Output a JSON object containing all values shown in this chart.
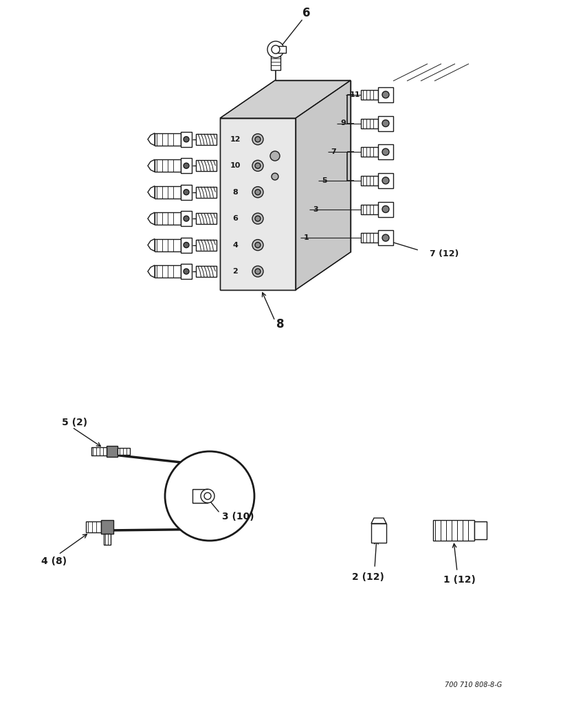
{
  "bg_color": "#ffffff",
  "line_color": "#1a1a1a",
  "part_numbers": {
    "label6": "6",
    "label7": "7 (12)",
    "label8": "8",
    "label5": "5 (2)",
    "label4": "4 (8)",
    "label3": "3 (10)",
    "label2": "2 (12)",
    "label1": "1 (12)"
  },
  "block_numbers_left": [
    "12",
    "10",
    "8",
    "6",
    "4",
    "2"
  ],
  "block_numbers_right": [
    "11",
    "9",
    "7",
    "5",
    "3",
    "1"
  ],
  "footer_text": "700 710 808-8-G",
  "fig_width": 8.0,
  "fig_height": 10.0
}
